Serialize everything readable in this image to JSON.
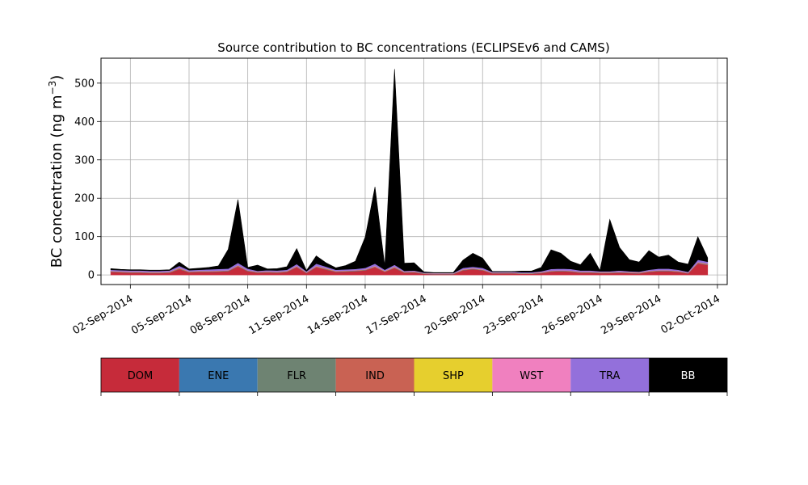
{
  "chart_data": {
    "type": "area",
    "title": "Source contribution to BC concentrations (ECLIPSEv6 and CAMS)",
    "xlabel": "",
    "ylabel": "BC concentration (ng m",
    "ylabel_exp": "−3",
    "ylabel_close": ")",
    "ylim": [
      -25,
      565
    ],
    "xlim": [
      "2014-08-31T12:00",
      "2014-10-02T12:00"
    ],
    "yticks": [
      0,
      100,
      200,
      300,
      400,
      500
    ],
    "xtick_labels": [
      "02-Sep-2014",
      "05-Sep-2014",
      "08-Sep-2014",
      "11-Sep-2014",
      "14-Sep-2014",
      "17-Sep-2014",
      "20-Sep-2014",
      "23-Sep-2014",
      "26-Sep-2014",
      "29-Sep-2014",
      "02-Oct-2014"
    ],
    "grid": true,
    "stacked": true,
    "x": [
      "2014-09-01T00:00",
      "2014-09-01T12:00",
      "2014-09-02T00:00",
      "2014-09-02T12:00",
      "2014-09-03T00:00",
      "2014-09-03T12:00",
      "2014-09-04T00:00",
      "2014-09-04T12:00",
      "2014-09-05T00:00",
      "2014-09-05T12:00",
      "2014-09-06T00:00",
      "2014-09-06T12:00",
      "2014-09-07T00:00",
      "2014-09-07T12:00",
      "2014-09-08T00:00",
      "2014-09-08T12:00",
      "2014-09-09T00:00",
      "2014-09-09T12:00",
      "2014-09-10T00:00",
      "2014-09-10T12:00",
      "2014-09-11T00:00",
      "2014-09-11T12:00",
      "2014-09-12T00:00",
      "2014-09-12T12:00",
      "2014-09-13T00:00",
      "2014-09-13T12:00",
      "2014-09-14T00:00",
      "2014-09-14T12:00",
      "2014-09-15T00:00",
      "2014-09-15T12:00",
      "2014-09-16T00:00",
      "2014-09-16T12:00",
      "2014-09-17T00:00",
      "2014-09-17T12:00",
      "2014-09-18T00:00",
      "2014-09-18T12:00",
      "2014-09-19T00:00",
      "2014-09-19T12:00",
      "2014-09-20T00:00",
      "2014-09-20T12:00",
      "2014-09-21T00:00",
      "2014-09-21T12:00",
      "2014-09-22T00:00",
      "2014-09-22T12:00",
      "2014-09-23T00:00",
      "2014-09-23T12:00",
      "2014-09-24T00:00",
      "2014-09-24T12:00",
      "2014-09-25T00:00",
      "2014-09-25T12:00",
      "2014-09-26T00:00",
      "2014-09-26T12:00",
      "2014-09-27T00:00",
      "2014-09-27T12:00",
      "2014-09-28T00:00",
      "2014-09-28T12:00",
      "2014-09-29T00:00",
      "2014-09-29T12:00",
      "2014-09-30T00:00",
      "2014-09-30T12:00",
      "2014-10-01T00:00",
      "2014-10-01T12:00"
    ],
    "series": [
      {
        "name": "DOM",
        "color": "#c62b3a",
        "values": [
          8,
          7,
          6,
          6,
          5,
          5,
          6,
          15,
          7,
          8,
          8,
          9,
          10,
          22,
          10,
          6,
          7,
          6,
          8,
          20,
          5,
          20,
          14,
          8,
          9,
          10,
          12,
          20,
          8,
          18,
          6,
          7,
          3,
          2,
          2,
          2,
          12,
          15,
          12,
          4,
          4,
          4,
          3,
          3,
          5,
          9,
          10,
          9,
          6,
          6,
          5,
          5,
          6,
          5,
          4,
          8,
          10,
          10,
          8,
          4,
          30,
          26
        ]
      },
      {
        "name": "ENE",
        "color": "#3a78b0",
        "values": [
          0.5,
          0.5,
          0.5,
          0.5,
          0.5,
          0.5,
          0.5,
          0.5,
          0.5,
          0.5,
          0.5,
          0.5,
          0.5,
          0.5,
          0.5,
          0.5,
          0.5,
          0.5,
          0.5,
          0.5,
          0.5,
          0.5,
          0.5,
          0.5,
          0.5,
          0.5,
          0.5,
          0.5,
          0.5,
          0.5,
          0.5,
          0.5,
          0.5,
          0.5,
          0.5,
          0.5,
          0.5,
          0.5,
          0.5,
          0.5,
          0.5,
          0.5,
          0.5,
          0.5,
          0.5,
          0.5,
          0.5,
          0.5,
          0.5,
          0.5,
          0.5,
          0.5,
          0.5,
          0.5,
          0.5,
          0.5,
          0.5,
          0.5,
          0.5,
          0.5,
          0.5,
          0.5
        ]
      },
      {
        "name": "FLR",
        "color": "#6e8372",
        "values": [
          0.3,
          0.3,
          0.3,
          0.3,
          0.3,
          0.3,
          0.3,
          0.3,
          0.3,
          0.3,
          0.3,
          0.3,
          0.3,
          0.3,
          0.3,
          0.3,
          0.3,
          0.3,
          0.3,
          0.3,
          0.3,
          0.3,
          0.3,
          0.3,
          0.3,
          0.3,
          0.3,
          0.3,
          0.3,
          0.3,
          0.3,
          0.3,
          0.3,
          0.3,
          0.3,
          0.3,
          0.3,
          0.3,
          0.3,
          0.3,
          0.3,
          0.3,
          0.3,
          0.3,
          0.3,
          0.3,
          0.3,
          0.3,
          0.3,
          0.3,
          0.3,
          0.3,
          0.3,
          0.3,
          0.3,
          0.3,
          0.3,
          0.3,
          0.3,
          0.3,
          0.3,
          0.3
        ]
      },
      {
        "name": "IND",
        "color": "#c96253",
        "values": [
          1,
          1,
          1,
          1,
          1,
          1,
          1,
          2,
          1,
          1,
          1,
          1,
          1,
          2,
          1,
          1,
          1,
          1,
          1,
          2,
          1,
          2,
          2,
          1,
          1,
          1,
          1,
          2,
          1,
          2,
          1,
          1,
          0.5,
          0.5,
          0.5,
          0.5,
          1,
          1,
          1,
          0.5,
          0.5,
          0.5,
          0.5,
          0.5,
          1,
          1,
          1,
          1,
          1,
          1,
          1,
          1,
          1,
          1,
          1,
          1,
          1,
          1,
          1,
          0.5,
          2,
          2
        ]
      },
      {
        "name": "SHP",
        "color": "#e6cf2e",
        "values": [
          0.3,
          0.3,
          0.3,
          0.3,
          0.3,
          0.3,
          0.3,
          0.3,
          0.3,
          0.3,
          0.3,
          0.3,
          0.3,
          0.3,
          0.3,
          0.3,
          0.3,
          0.3,
          0.3,
          0.3,
          0.3,
          0.3,
          0.3,
          0.3,
          0.3,
          0.3,
          0.3,
          0.3,
          0.3,
          0.3,
          0.3,
          0.3,
          0.3,
          0.3,
          0.3,
          0.3,
          0.3,
          0.3,
          0.3,
          0.3,
          0.3,
          0.3,
          0.3,
          0.3,
          0.3,
          0.3,
          0.3,
          0.3,
          0.3,
          0.3,
          0.3,
          0.3,
          0.3,
          0.3,
          0.3,
          0.3,
          0.3,
          0.3,
          0.3,
          0.3,
          0.3,
          0.3
        ]
      },
      {
        "name": "WST",
        "color": "#f080bf",
        "values": [
          0.5,
          0.5,
          0.5,
          0.5,
          0.5,
          0.5,
          0.5,
          0.5,
          0.5,
          0.5,
          0.5,
          0.5,
          0.5,
          0.5,
          0.5,
          0.5,
          0.5,
          0.5,
          0.5,
          0.5,
          0.5,
          0.5,
          0.5,
          0.5,
          0.5,
          0.5,
          0.5,
          0.5,
          0.5,
          0.5,
          0.5,
          0.5,
          0.5,
          0.5,
          0.5,
          0.5,
          0.5,
          0.5,
          0.5,
          0.5,
          0.5,
          0.5,
          0.5,
          0.5,
          0.5,
          0.5,
          0.5,
          0.5,
          0.5,
          0.5,
          0.5,
          0.5,
          0.5,
          0.5,
          0.5,
          0.5,
          0.5,
          0.5,
          0.5,
          0.5,
          0.5,
          0.5
        ]
      },
      {
        "name": "TRA",
        "color": "#9370db",
        "values": [
          3,
          3,
          3,
          3,
          3,
          3,
          3,
          5,
          3,
          3,
          4,
          4,
          4,
          6,
          4,
          2,
          3,
          3,
          3,
          5,
          2,
          6,
          4,
          3,
          3,
          3,
          4,
          6,
          3,
          5,
          2,
          2,
          1,
          1,
          1,
          1,
          4,
          4,
          4,
          2,
          2,
          2,
          2,
          2,
          2,
          4,
          4,
          4,
          3,
          3,
          2,
          2,
          3,
          2,
          2,
          3,
          4,
          4,
          3,
          2,
          6,
          5
        ]
      },
      {
        "name": "BB",
        "color": "#000000",
        "values": [
          3,
          2,
          2,
          2,
          2,
          2,
          2,
          10,
          3,
          4,
          5,
          8,
          50,
          165,
          3,
          15,
          3,
          5,
          8,
          40,
          2,
          20,
          10,
          5,
          10,
          20,
          80,
          200,
          10,
          510,
          20,
          20,
          2,
          1,
          1,
          1,
          20,
          35,
          25,
          1,
          1,
          1,
          3,
          3,
          10,
          50,
          40,
          20,
          15,
          45,
          2,
          135,
          60,
          30,
          25,
          50,
          30,
          35,
          20,
          20,
          60,
          10
        ]
      }
    ]
  }
}
